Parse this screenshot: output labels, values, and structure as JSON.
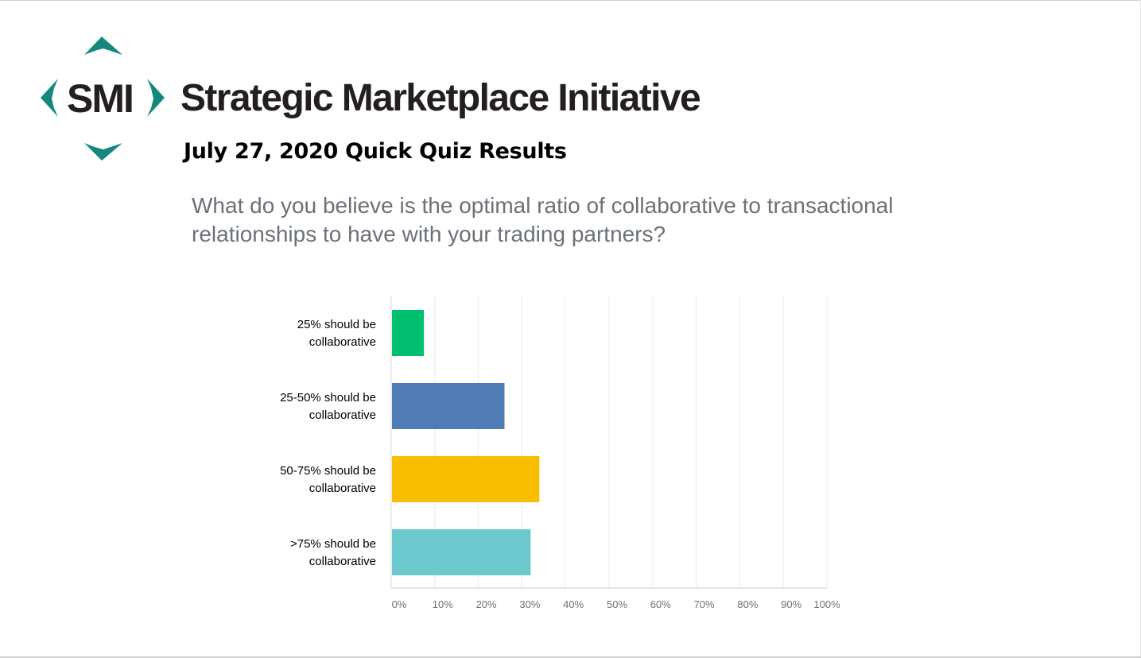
{
  "brand": {
    "logo_letters": "SMI",
    "name": "Strategic Marketplace Initiative",
    "accent_color": "#12897a",
    "text_color": "#231f20"
  },
  "slide": {
    "title": "July 27, 2020 Quick Quiz Results"
  },
  "question": {
    "line1": "What do you believe is the optimal ratio of collaborative to transactional",
    "line2": "relationships to have with your trading partners?"
  },
  "chart_data": {
    "type": "bar",
    "orientation": "horizontal",
    "title": "",
    "xlabel": "",
    "ylabel": "",
    "categories": [
      [
        "25% should be",
        "collaborative"
      ],
      [
        "25-50% should be",
        "collaborative"
      ],
      [
        "50-75% should be",
        "collaborative"
      ],
      [
        ">75% should be",
        "collaborative"
      ]
    ],
    "values": [
      7.5,
      26,
      34,
      32
    ],
    "colors": [
      "#00bf6f",
      "#507cb6",
      "#f9be00",
      "#6bc8cd"
    ],
    "xlim": [
      0,
      100
    ],
    "ticks": [
      "0%",
      "10%",
      "20%",
      "30%",
      "40%",
      "50%",
      "60%",
      "70%",
      "80%",
      "90%",
      "100%"
    ],
    "grid": true,
    "legend": "none"
  }
}
